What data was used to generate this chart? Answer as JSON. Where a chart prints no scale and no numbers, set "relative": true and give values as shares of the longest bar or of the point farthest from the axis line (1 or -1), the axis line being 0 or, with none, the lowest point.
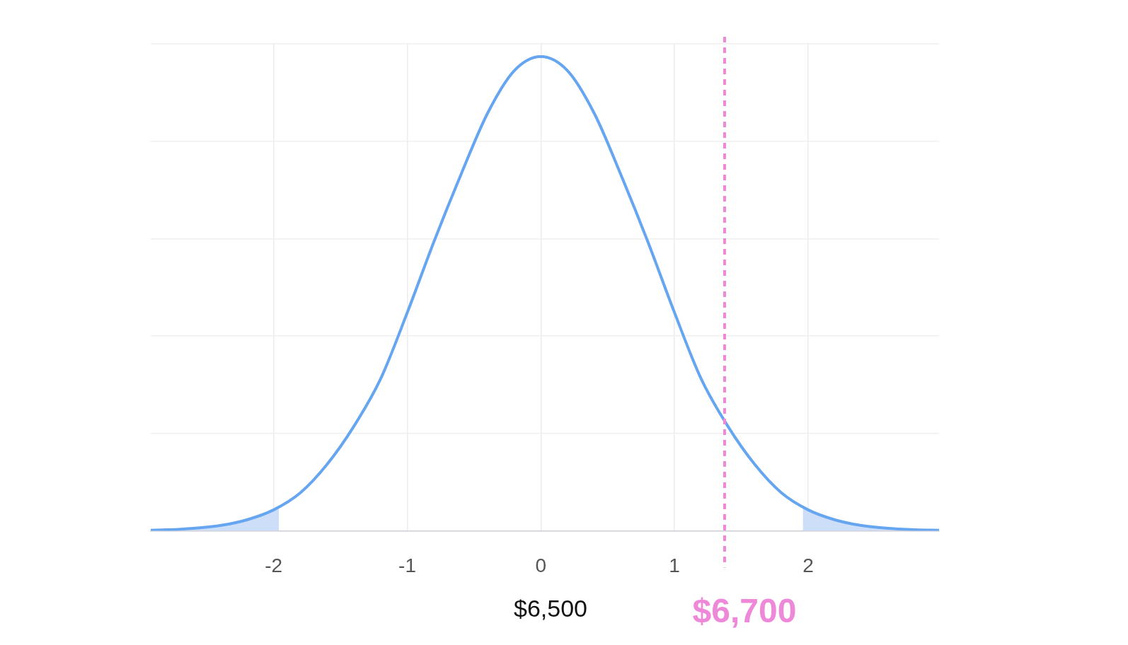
{
  "chart_data": {
    "type": "line",
    "relative": true,
    "xlim": [
      -2.92,
      2.98
    ],
    "xticks": [
      -2,
      -1,
      0,
      1,
      2
    ],
    "grid": true,
    "legend": false,
    "marker": "none",
    "series": [
      {
        "type": "area",
        "color": "#cddff8",
        "x": [
          -2.92,
          -2.8,
          -2.6,
          -2.4,
          -2.2,
          -2.0,
          -1.96
        ],
        "values": [
          0.001,
          0.002,
          0.005,
          0.011,
          0.023,
          0.044,
          0.049
        ]
      },
      {
        "type": "area",
        "color": "#cddff8",
        "x": [
          1.96,
          2.0,
          2.2,
          2.4,
          2.6,
          2.8,
          2.98
        ],
        "values": [
          0.049,
          0.044,
          0.023,
          0.011,
          0.005,
          0.002,
          0.001
        ]
      },
      {
        "color": "#66a5f0",
        "x": [
          -2.92,
          -2.8,
          -2.6,
          -2.4,
          -2.2,
          -2.0,
          -1.8,
          -1.6,
          -1.4,
          -1.2,
          -1.0,
          -0.8,
          -0.6,
          -0.4,
          -0.2,
          0,
          0.2,
          0.4,
          0.6,
          0.8,
          1.0,
          1.2,
          1.4,
          1.6,
          1.8,
          2.0,
          2.2,
          2.4,
          2.6,
          2.8,
          2.98
        ],
        "values": [
          0.001,
          0.002,
          0.005,
          0.011,
          0.023,
          0.044,
          0.08,
          0.14,
          0.22,
          0.32,
          0.46,
          0.61,
          0.75,
          0.88,
          0.97,
          1,
          0.97,
          0.88,
          0.75,
          0.61,
          0.46,
          0.32,
          0.22,
          0.14,
          0.08,
          0.044,
          0.023,
          0.011,
          0.005,
          0.002,
          0.001
        ]
      }
    ],
    "ref_lines": [
      {
        "axis": "x",
        "value": 1.375,
        "color": "#ee88d8",
        "line_style": "dashed"
      }
    ],
    "annotations": [
      "$6,500",
      {
        "text": "$6,700",
        "x": 1.375,
        "y": 0
      }
    ]
  }
}
